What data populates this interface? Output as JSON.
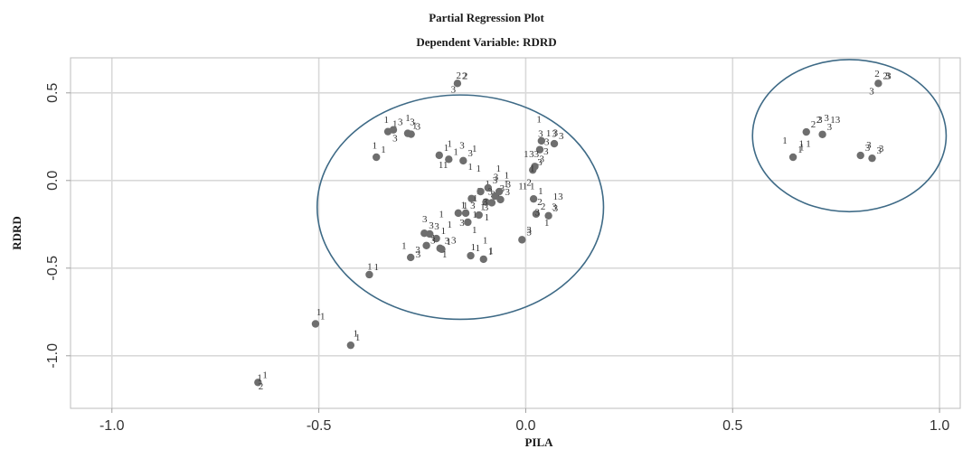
{
  "chart_data": {
    "type": "scatter",
    "title": "Partial Regression Plot",
    "subtitle": "Dependent Variable: RDRD",
    "xlabel": "PILA",
    "ylabel": "RDRD",
    "xlim": [
      -1.1,
      1.05
    ],
    "ylim": [
      -1.3,
      0.7
    ],
    "x_ticks": [
      {
        "value": -1.0,
        "label": "-1.0"
      },
      {
        "value": -0.5,
        "label": "-0.5"
      },
      {
        "value": 0.0,
        "label": "0.0"
      },
      {
        "value": 0.5,
        "label": "0.5"
      },
      {
        "value": 1.0,
        "label": "1.0"
      }
    ],
    "y_ticks": [
      {
        "value": 0.5,
        "label": "0.5"
      },
      {
        "value": 0.0,
        "label": "0.0"
      },
      {
        "value": -0.5,
        "label": "-0.5"
      },
      {
        "value": -1.0,
        "label": "-1.0"
      }
    ],
    "grid": true,
    "marker_color": "#6e6e6e",
    "ellipse_color": "#3e6a86",
    "points": [
      {
        "x": -0.647,
        "y": -1.152,
        "label": "1"
      },
      {
        "x": -0.508,
        "y": -0.818,
        "label": "1"
      },
      {
        "x": -0.423,
        "y": -0.94,
        "label": "1"
      },
      {
        "x": -0.378,
        "y": -0.537,
        "label": "1"
      },
      {
        "x": -0.361,
        "y": 0.133,
        "label": "1"
      },
      {
        "x": -0.333,
        "y": 0.279,
        "label": "1"
      },
      {
        "x": -0.32,
        "y": 0.289,
        "label": "3"
      },
      {
        "x": -0.285,
        "y": 0.269,
        "label": "1"
      },
      {
        "x": -0.277,
        "y": 0.264,
        "label": "3"
      },
      {
        "x": -0.278,
        "y": -0.439,
        "label": "3"
      },
      {
        "x": -0.245,
        "y": -0.301,
        "label": "3"
      },
      {
        "x": -0.24,
        "y": -0.371,
        "label": "1"
      },
      {
        "x": -0.232,
        "y": -0.305,
        "label": "3"
      },
      {
        "x": -0.216,
        "y": -0.331,
        "label": "1"
      },
      {
        "x": -0.207,
        "y": -0.387,
        "label": "3"
      },
      {
        "x": -0.203,
        "y": -0.392,
        "label": "1"
      },
      {
        "x": -0.209,
        "y": 0.144,
        "label": "1"
      },
      {
        "x": -0.186,
        "y": 0.121,
        "label": "1"
      },
      {
        "x": -0.165,
        "y": 0.554,
        "label": "2"
      },
      {
        "x": -0.163,
        "y": -0.186,
        "label": "1"
      },
      {
        "x": -0.151,
        "y": 0.113,
        "label": "3"
      },
      {
        "x": -0.145,
        "y": -0.186,
        "label": "3"
      },
      {
        "x": -0.14,
        "y": -0.238,
        "label": "1"
      },
      {
        "x": -0.133,
        "y": -0.429,
        "label": "1"
      },
      {
        "x": -0.131,
        "y": -0.103,
        "label": "1"
      },
      {
        "x": -0.113,
        "y": -0.197,
        "label": "3"
      },
      {
        "x": -0.109,
        "y": -0.063,
        "label": "1"
      },
      {
        "x": -0.102,
        "y": -0.449,
        "label": "1"
      },
      {
        "x": -0.096,
        "y": -0.123,
        "label": "3"
      },
      {
        "x": -0.091,
        "y": -0.042,
        "label": "3"
      },
      {
        "x": -0.082,
        "y": -0.127,
        "label": "1"
      },
      {
        "x": -0.074,
        "y": -0.089,
        "label": "3"
      },
      {
        "x": -0.064,
        "y": -0.063,
        "label": "1"
      },
      {
        "x": -0.061,
        "y": -0.109,
        "label": "3"
      },
      {
        "x": -0.009,
        "y": -0.338,
        "label": "3"
      },
      {
        "x": 0.017,
        "y": 0.06,
        "label": "3"
      },
      {
        "x": 0.019,
        "y": -0.105,
        "label": "1"
      },
      {
        "x": 0.022,
        "y": 0.08,
        "label": "3"
      },
      {
        "x": 0.025,
        "y": -0.191,
        "label": "2"
      },
      {
        "x": 0.034,
        "y": 0.176,
        "label": "3"
      },
      {
        "x": 0.038,
        "y": 0.226,
        "label": "1"
      },
      {
        "x": 0.055,
        "y": -0.201,
        "label": "3"
      },
      {
        "x": 0.069,
        "y": 0.21,
        "label": "3"
      },
      {
        "x": 0.646,
        "y": 0.133,
        "label": "1"
      },
      {
        "x": 0.678,
        "y": 0.277,
        "label": "2"
      },
      {
        "x": 0.717,
        "y": 0.263,
        "label": "3"
      },
      {
        "x": 0.809,
        "y": 0.143,
        "label": "3"
      },
      {
        "x": 0.837,
        "y": 0.127,
        "label": "3"
      },
      {
        "x": 0.852,
        "y": 0.554,
        "label": "2"
      }
    ],
    "annotations": [
      {
        "x": -0.649,
        "y": -1.142,
        "text": "1"
      },
      {
        "x": -0.646,
        "y": -1.193,
        "text": "2"
      },
      {
        "x": -0.168,
        "y": 0.581,
        "text": "2"
      },
      {
        "x": -0.152,
        "y": 0.578,
        "text": "2"
      },
      {
        "x": -0.181,
        "y": 0.501,
        "text": "3"
      },
      {
        "x": -0.343,
        "y": 0.329,
        "text": "1"
      },
      {
        "x": -0.322,
        "y": 0.224,
        "text": "3"
      },
      {
        "x": -0.291,
        "y": 0.339,
        "text": "1"
      },
      {
        "x": -0.28,
        "y": 0.317,
        "text": "3"
      },
      {
        "x": -0.371,
        "y": 0.182,
        "text": "1"
      },
      {
        "x": -0.19,
        "y": 0.193,
        "text": "1"
      },
      {
        "x": -0.16,
        "y": 0.183,
        "text": "3"
      },
      {
        "x": -0.13,
        "y": 0.163,
        "text": "1"
      },
      {
        "x": -0.211,
        "y": 0.071,
        "text": "11"
      },
      {
        "x": -0.14,
        "y": 0.061,
        "text": "1"
      },
      {
        "x": -0.12,
        "y": 0.051,
        "text": "1"
      },
      {
        "x": -0.072,
        "y": 0.051,
        "text": "1"
      },
      {
        "x": -0.052,
        "y": 0.011,
        "text": "1"
      },
      {
        "x": -0.078,
        "y": 0.001,
        "text": "3"
      },
      {
        "x": -0.048,
        "y": -0.039,
        "text": "3"
      },
      {
        "x": -0.018,
        "y": -0.049,
        "text": "1"
      },
      {
        "x": -0.008,
        "y": -0.049,
        "text": "1"
      },
      {
        "x": 0.002,
        "y": -0.029,
        "text": "2"
      },
      {
        "x": -0.092,
        "y": -0.082,
        "text": "3"
      },
      {
        "x": -0.128,
        "y": -0.119,
        "text": "1"
      },
      {
        "x": -0.157,
        "y": -0.157,
        "text": "1"
      },
      {
        "x": -0.104,
        "y": -0.139,
        "text": "3"
      },
      {
        "x": -0.11,
        "y": -0.169,
        "text": "1"
      },
      {
        "x": -0.1,
        "y": -0.229,
        "text": "1"
      },
      {
        "x": -0.16,
        "y": -0.259,
        "text": "3"
      },
      {
        "x": -0.13,
        "y": -0.299,
        "text": "1"
      },
      {
        "x": -0.104,
        "y": -0.359,
        "text": "1"
      },
      {
        "x": -0.25,
        "y": -0.239,
        "text": "3"
      },
      {
        "x": -0.23,
        "y": -0.359,
        "text": "3"
      },
      {
        "x": -0.19,
        "y": -0.269,
        "text": "1"
      },
      {
        "x": -0.18,
        "y": -0.359,
        "text": "3"
      },
      {
        "x": -0.21,
        "y": -0.209,
        "text": "1"
      },
      {
        "x": -0.3,
        "y": -0.389,
        "text": "1"
      },
      {
        "x": -0.266,
        "y": -0.439,
        "text": "3"
      },
      {
        "x": -0.202,
        "y": -0.439,
        "text": "1"
      },
      {
        "x": -0.133,
        "y": -0.399,
        "text": "1"
      },
      {
        "x": -0.09,
        "y": -0.419,
        "text": "1"
      },
      {
        "x": -0.383,
        "y": -0.509,
        "text": "1"
      },
      {
        "x": -0.506,
        "y": -0.769,
        "text": "1"
      },
      {
        "x": -0.417,
        "y": -0.889,
        "text": "1"
      },
      {
        "x": 0.026,
        "y": 0.331,
        "text": "1"
      },
      {
        "x": 0.03,
        "y": 0.25,
        "text": "3"
      },
      {
        "x": 0.063,
        "y": 0.25,
        "text": "3"
      },
      {
        "x": 0.066,
        "y": 0.254,
        "text": "3"
      },
      {
        "x": 0.043,
        "y": 0.149,
        "text": "3"
      },
      {
        "x": -0.005,
        "y": 0.134,
        "text": "1"
      },
      {
        "x": 0.008,
        "y": 0.134,
        "text": "33"
      },
      {
        "x": 0.01,
        "y": 0.051,
        "text": "1"
      },
      {
        "x": 0.01,
        "y": -0.049,
        "text": "1"
      },
      {
        "x": 0.028,
        "y": -0.139,
        "text": "2"
      },
      {
        "x": 0.063,
        "y": -0.169,
        "text": "3"
      },
      {
        "x": 0.066,
        "y": -0.11,
        "text": "13"
      },
      {
        "x": 0.022,
        "y": -0.2,
        "text": "3"
      },
      {
        "x": 0.045,
        "y": -0.26,
        "text": "1"
      },
      {
        "x": 0.002,
        "y": -0.3,
        "text": "3"
      },
      {
        "x": 0.62,
        "y": 0.211,
        "text": "1"
      },
      {
        "x": 0.66,
        "y": 0.191,
        "text": "1"
      },
      {
        "x": 0.677,
        "y": 0.191,
        "text": "1"
      },
      {
        "x": 0.661,
        "y": 0.171,
        "text": "1"
      },
      {
        "x": 0.702,
        "y": 0.33,
        "text": "2"
      },
      {
        "x": 0.705,
        "y": 0.33,
        "text": "3"
      },
      {
        "x": 0.721,
        "y": 0.339,
        "text": "3"
      },
      {
        "x": 0.736,
        "y": 0.329,
        "text": "13"
      },
      {
        "x": 0.823,
        "y": 0.184,
        "text": "3"
      },
      {
        "x": 0.853,
        "y": 0.165,
        "text": "3"
      },
      {
        "x": 0.843,
        "y": 0.592,
        "text": "2"
      },
      {
        "x": 0.868,
        "y": 0.578,
        "text": "3"
      },
      {
        "x": 0.871,
        "y": 0.578,
        "text": "3"
      },
      {
        "x": 0.83,
        "y": 0.491,
        "text": "3"
      }
    ],
    "ellipses": [
      {
        "cx": -0.158,
        "cy": -0.152,
        "rx": 0.346,
        "ry": 0.64
      },
      {
        "cx": 0.782,
        "cy": 0.256,
        "rx": 0.234,
        "ry": 0.434
      }
    ]
  }
}
